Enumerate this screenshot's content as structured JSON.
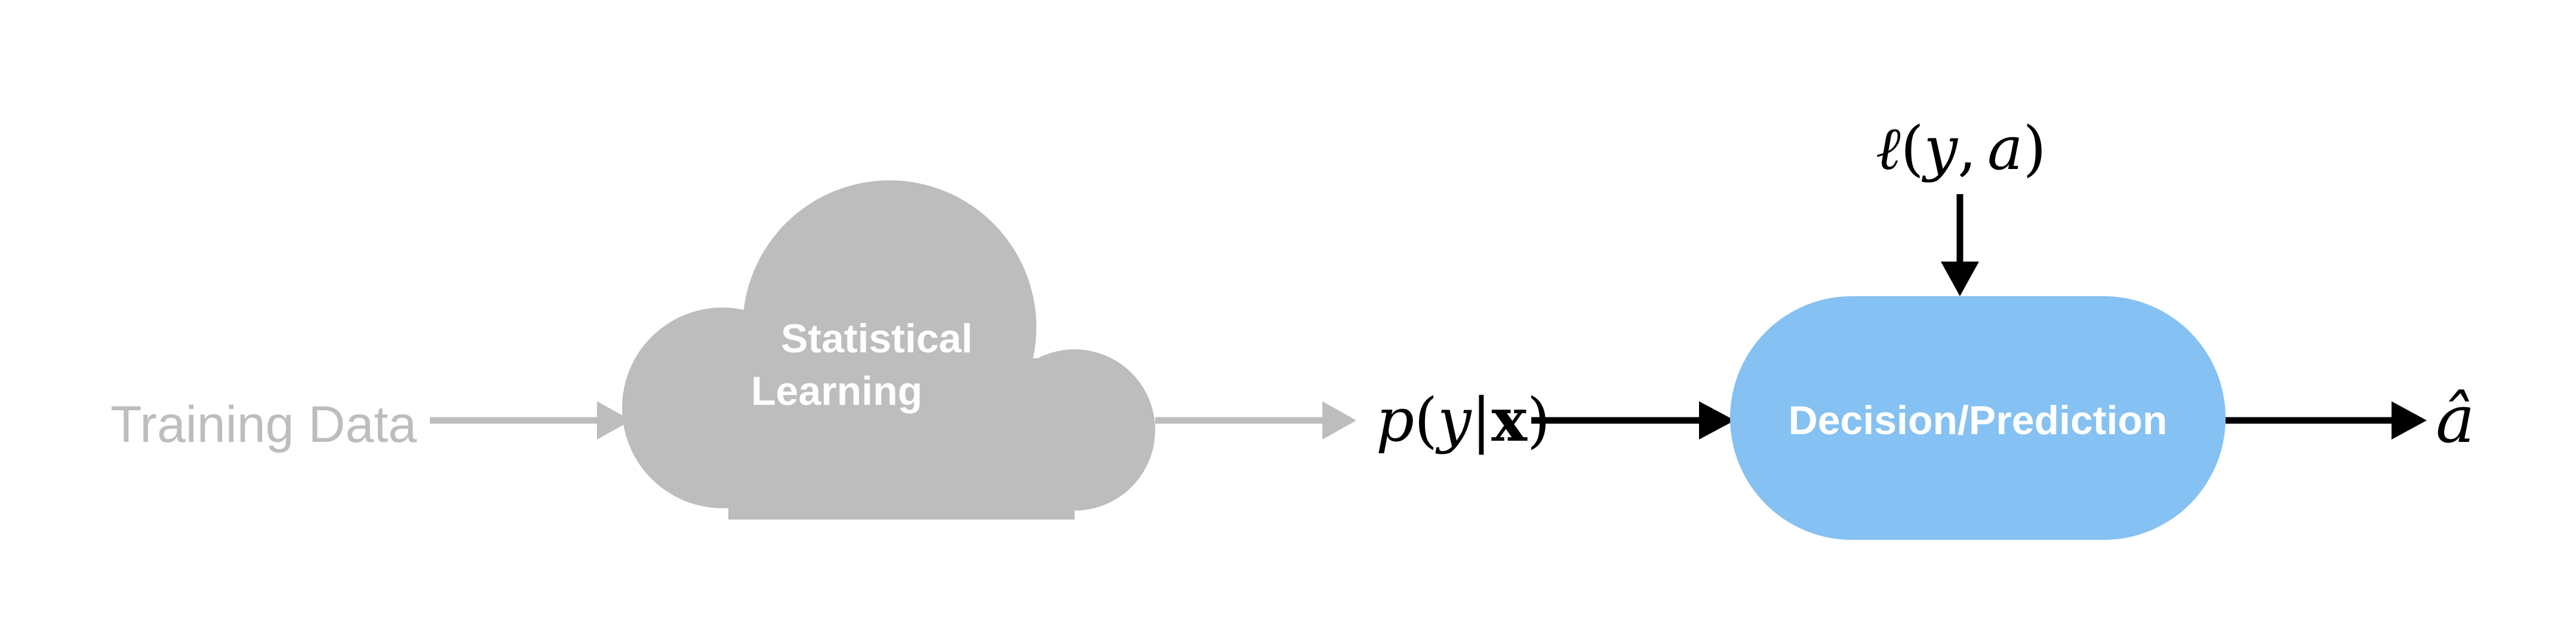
{
  "diagram": {
    "input_label": "Training Data",
    "cloud_label_line1": "Statistical",
    "cloud_label_line2": "Learning",
    "posterior": {
      "p": "p",
      "open": "(",
      "y": "y",
      "bar": "|",
      "x": "x",
      "close": ")"
    },
    "loss": {
      "ell": "ℓ",
      "open": "(",
      "y": "y",
      "comma": ",",
      "a": "a",
      "close": ")"
    },
    "decision_label": "Decision/Prediction",
    "output_label": "â"
  },
  "colors": {
    "gray": "#bdbdbd",
    "blue": "#85c1f2",
    "black": "#000000",
    "white": "#ffffff"
  }
}
